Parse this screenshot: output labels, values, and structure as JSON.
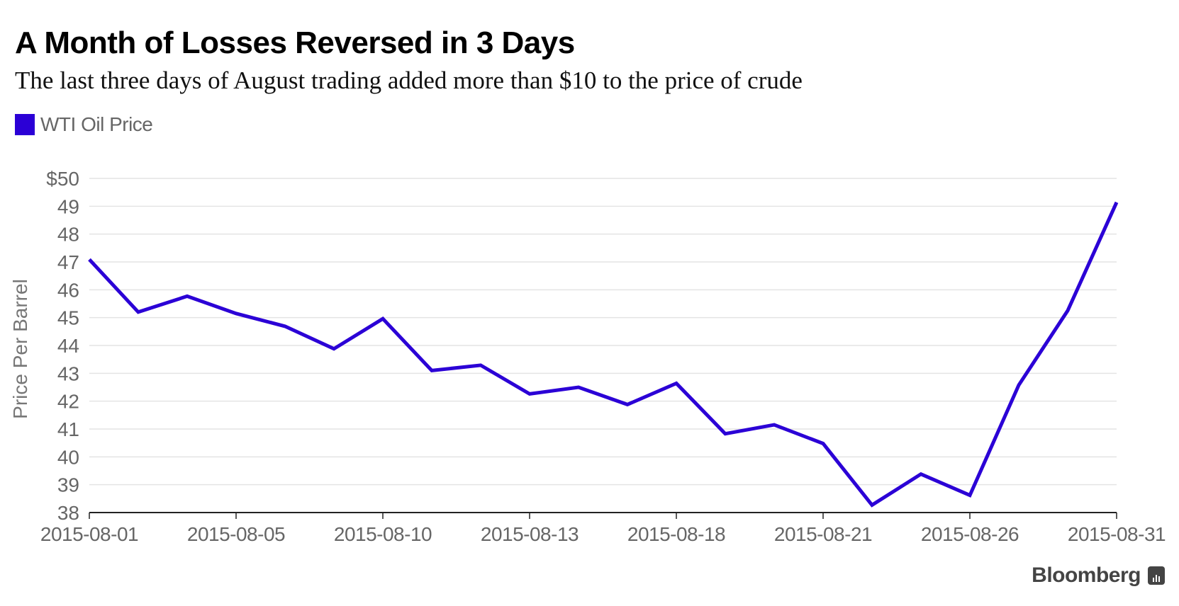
{
  "header": {
    "title": "A Month of Losses Reversed in 3 Days",
    "subtitle": "The last three days of August trading added more than $10 to the price of crude"
  },
  "legend": {
    "items": [
      {
        "label": "WTI Oil Price",
        "color": "#2b00d6"
      }
    ]
  },
  "footer": {
    "brand": "Bloomberg"
  },
  "chart_data": {
    "type": "line",
    "title": "A Month of Losses Reversed in 3 Days",
    "subtitle": "The last three days of August trading added more than $10 to the price of crude",
    "xlabel": "",
    "ylabel": "Price Per Barrel",
    "ylim": [
      38,
      50
    ],
    "yticks": [
      38,
      39,
      40,
      41,
      42,
      43,
      44,
      45,
      46,
      47,
      48,
      49,
      50
    ],
    "ytick_labels": [
      "38",
      "39",
      "40",
      "41",
      "42",
      "43",
      "44",
      "45",
      "46",
      "47",
      "48",
      "49",
      "$50"
    ],
    "xtick_labels": [
      "2015-08-01",
      "2015-08-05",
      "2015-08-10",
      "2015-08-13",
      "2015-08-18",
      "2015-08-21",
      "2015-08-26",
      "2015-08-31"
    ],
    "xtick_index": [
      0,
      3,
      6,
      9,
      12,
      15,
      18,
      21
    ],
    "grid": true,
    "legend_position": "top-left",
    "series": [
      {
        "name": "WTI Oil Price",
        "color": "#2b00d6",
        "values": [
          47.09,
          45.2,
          45.77,
          45.15,
          44.69,
          43.88,
          44.96,
          43.1,
          43.29,
          42.26,
          42.5,
          41.88,
          42.64,
          40.83,
          41.15,
          40.48,
          38.27,
          39.38,
          38.62,
          42.58,
          45.25,
          49.14
        ]
      }
    ]
  }
}
